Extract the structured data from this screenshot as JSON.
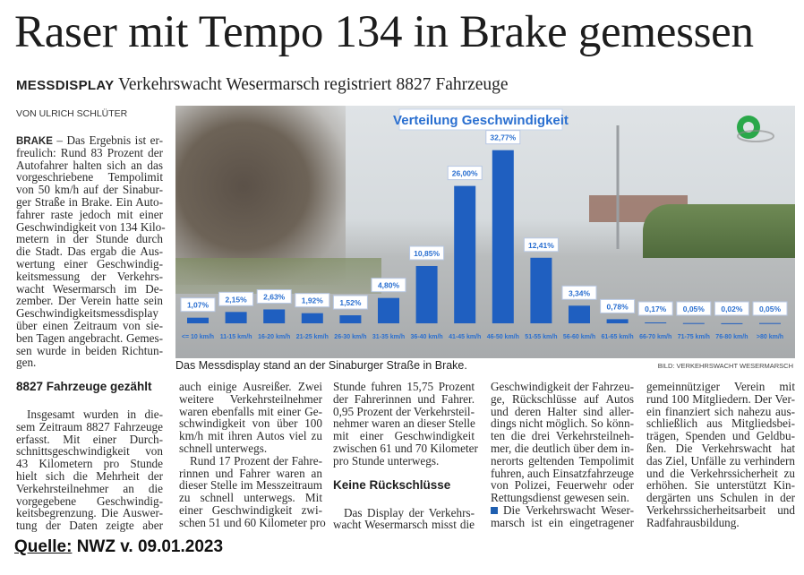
{
  "article": {
    "title": "Raser mit Tempo 134 in Brake gemessen",
    "kicker": "MESSDISPLAY",
    "subtitle": "Verkehrswacht Wesermarsch registriert 8827 Fahrzeuge",
    "byline": "VON ULRICH SCHLÜTER",
    "dateline": "BRAKE",
    "lead_lines": [
      " – Das Ergebnis ist er-",
      "freulich: Rund 83 Prozent der",
      "Autofahrer halten sich an das",
      "vorgeschriebene Tempolimit",
      "von 50 km/h auf der Sinabur-",
      "ger Straße in Brake. Ein Auto-",
      "fahrer raste jedoch mit einer",
      "Geschwindigkeit von 134 Kilo-",
      "metern in der Stunde durch",
      "die Stadt. Das ergab die Aus-",
      "wertung einer Geschwindig-",
      "keitsmessung der Verkehrs-",
      "wacht Wesermarsch im De-",
      "zember. Der Verein hatte sein",
      "Geschwindigkeitsmessdisplay",
      "über einen Zeitraum von sie-",
      "ben Tagen angebracht. Gemes-",
      "sen wurde in beiden Richtun-",
      "gen."
    ],
    "columns": [
      {
        "blocks": [
          {
            "type": "h",
            "text": "8827 Fahrzeuge gezählt"
          },
          {
            "type": "p",
            "indent": true,
            "lines": [
              "Insgesamt wurden in die-",
              "sem Zeitraum 8827 Fahrzeuge",
              "erfasst. Mit einer Durch-",
              "schnittsgeschwindigkeit von",
              "43 Kilometern pro Stunde",
              "hielt sich die Mehrheit der",
              "Verkehrsteilnehmer an die",
              "vorgegebene Geschwindig-",
              "keitsbegrenzung. Die Auswer-",
              "tung der Daten zeigte aber"
            ],
            "continues": true
          }
        ]
      },
      {
        "blocks": [
          {
            "type": "p",
            "indent": false,
            "lines": [
              "auch einige Ausreißer. Zwei",
              "weitere Verkehrsteilnehmer",
              "waren ebenfalls mit einer Ge-",
              "schwindigkeit von über 100",
              "km/h mit ihren Autos viel zu",
              "schnell unterwegs."
            ]
          },
          {
            "type": "p",
            "indent": true,
            "lines": [
              "Rund 17 Prozent der Fahre-",
              "rinnen und Fahrer waren an",
              "dieser Stelle im Messzeitraum",
              "zu schnell unterwegs. Mit",
              "einer Geschwindigkeit zwi-",
              "schen 51 und 60 Kilometer pro"
            ],
            "continues": true
          }
        ]
      },
      {
        "blocks": [
          {
            "type": "p",
            "indent": false,
            "lines": [
              "Stunde fuhren 15,75 Prozent",
              "der Fahrerinnen und Fahrer.",
              "0,95 Prozent der Verkehrsteil-",
              "nehmer waren an dieser Stelle",
              "mit einer Geschwindigkeit",
              "zwischen 61 und 70 Kilometer",
              "pro Stunde unterwegs."
            ]
          },
          {
            "type": "h",
            "text": "Keine Rückschlüsse"
          },
          {
            "type": "p",
            "indent": true,
            "lines": [
              "Das Display der Verkehrs-",
              "wacht Wesermarsch misst die"
            ],
            "continues": true
          }
        ]
      },
      {
        "blocks": [
          {
            "type": "p",
            "indent": false,
            "lines": [
              "Geschwindigkeit der Fahrzeu-",
              "ge, Rückschlüsse auf Autos",
              "und deren Halter sind aller-",
              "dings nicht möglich. So könn-",
              "ten die drei Verkehrsteilneh-",
              "mer, die deutlich über dem in-",
              "nerorts geltenden Tempolimit",
              "fuhren, auch Einsatzfahrzeuge",
              "von Polizei, Feuerwehr oder",
              "Rettungsdienst gewesen sein."
            ]
          },
          {
            "type": "p",
            "indent": false,
            "bullet": true,
            "lines": [
              "Die Verkehrswacht Weser-",
              "marsch ist ein eingetragener"
            ],
            "continues": true
          }
        ]
      },
      {
        "blocks": [
          {
            "type": "p",
            "indent": false,
            "lines": [
              "gemeinnütziger Verein mit",
              "rund 100 Mitgliedern. Der Ver-",
              "ein finanziert sich nahezu aus-",
              "schließlich aus Mitgliedsbei-",
              "trägen, Spenden und Geldbu-",
              "ßen. Die Verkehrswacht hat",
              "das Ziel, Unfälle zu verhindern",
              "und die Verkehrssicherheit zu",
              "erhöhen. Sie unterstützt Kin-",
              "dergärten uns Schulen in der",
              "Verkehrssicherheitsarbeit und",
              "Radfahrausbildung."
            ]
          }
        ]
      }
    ],
    "caption": "Das Messdisplay stand an der Sinaburger Straße in Brake.",
    "credit": "BILD: VERKEHRSWACHT WESERMARSCH"
  },
  "source": {
    "label": "Quelle:",
    "text": "NWZ v. 09.01.2023"
  },
  "chart_data": {
    "type": "bar",
    "title": "Verteilung Geschwindigkeit",
    "categories": [
      "<= 10 km/h",
      "11-15 km/h",
      "16-20 km/h",
      "21-25 km/h",
      "26-30 km/h",
      "31-35 km/h",
      "36-40 km/h",
      "41-45 km/h",
      "46-50 km/h",
      "51-55 km/h",
      "56-60 km/h",
      "61-65 km/h",
      "66-70 km/h",
      "71-75 km/h",
      "76-80 km/h",
      ">80 km/h"
    ],
    "values": [
      1.07,
      2.15,
      2.63,
      1.92,
      1.52,
      4.8,
      10.85,
      26.0,
      32.77,
      12.41,
      3.34,
      0.78,
      0.17,
      0.05,
      0.02,
      0.05
    ],
    "value_labels": [
      "1,07%",
      "2,15%",
      "2,63%",
      "1,92%",
      "1,52%",
      "4,80%",
      "10,85%",
      "26,00%",
      "32,77%",
      "12,41%",
      "3,34%",
      "0,78%",
      "0,17%",
      "0,05%",
      "0,02%",
      "0,05%"
    ],
    "bar_color": "#1f5fc0",
    "label_color": "#2a6fd0",
    "grid": false
  }
}
